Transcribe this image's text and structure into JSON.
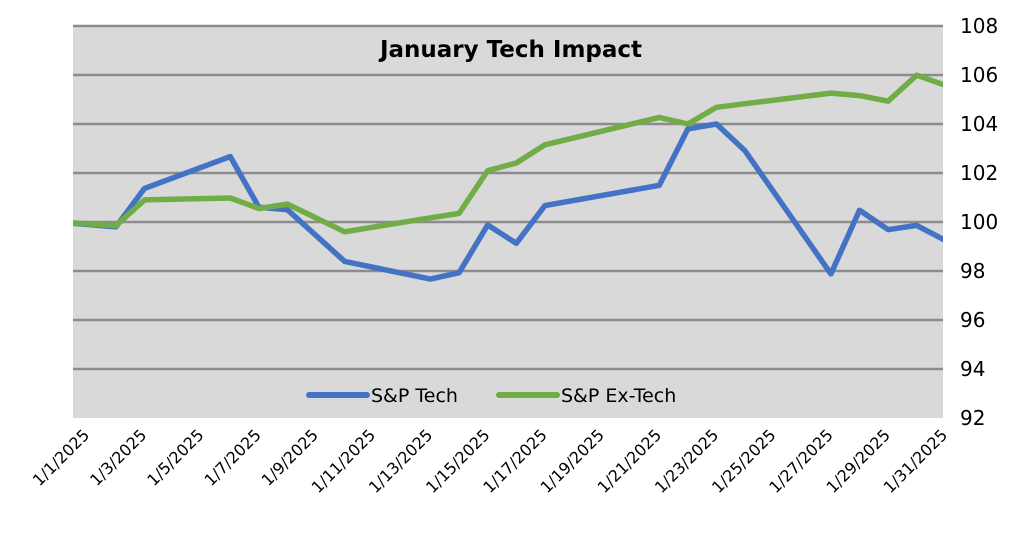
{
  "chart_data": {
    "type": "line",
    "title": "January Tech Impact",
    "xlabel": "",
    "ylabel": "",
    "y_axis_position": "right",
    "ylim": [
      92,
      108
    ],
    "yticks": [
      92,
      94,
      96,
      98,
      100,
      102,
      104,
      106,
      108
    ],
    "xlim": [
      "1/1/2025",
      "1/31/2025"
    ],
    "x_tick_labels": [
      "1/1/2025",
      "1/3/2025",
      "1/5/2025",
      "1/7/2025",
      "1/9/2025",
      "1/11/2025",
      "1/13/2025",
      "1/15/2025",
      "1/17/2025",
      "1/19/2025",
      "1/21/2025",
      "1/23/2025",
      "1/25/2025",
      "1/27/2025",
      "1/29/2025",
      "1/31/2025"
    ],
    "grid": true,
    "legend_position": "bottom-center-inside",
    "x": [
      "12/31/2024",
      "1/2/2025",
      "1/3/2025",
      "1/6/2025",
      "1/7/2025",
      "1/8/2025",
      "1/10/2025",
      "1/13/2025",
      "1/14/2025",
      "1/15/2025",
      "1/16/2025",
      "1/17/2025",
      "1/21/2025",
      "1/22/2025",
      "1/23/2025",
      "1/24/2025",
      "1/27/2025",
      "1/28/2025",
      "1/29/2025",
      "1/30/2025",
      "1/31/2025"
    ],
    "series": [
      {
        "name": "S&P Tech",
        "color": "#4472C4",
        "values": [
          100.0,
          99.8,
          101.37,
          102.67,
          100.6,
          100.5,
          98.39,
          97.67,
          97.93,
          99.88,
          99.13,
          100.67,
          101.5,
          103.8,
          104.0,
          102.9,
          97.88,
          100.48,
          99.69,
          99.86,
          99.25
        ]
      },
      {
        "name": "S&P Ex-Tech",
        "color": "#70AD47",
        "values": [
          100.0,
          99.85,
          100.9,
          100.98,
          100.55,
          100.73,
          99.6,
          100.17,
          100.35,
          102.1,
          102.41,
          103.15,
          104.27,
          104.0,
          104.68,
          104.83,
          105.26,
          105.16,
          104.93,
          105.99,
          105.58
        ]
      }
    ]
  }
}
